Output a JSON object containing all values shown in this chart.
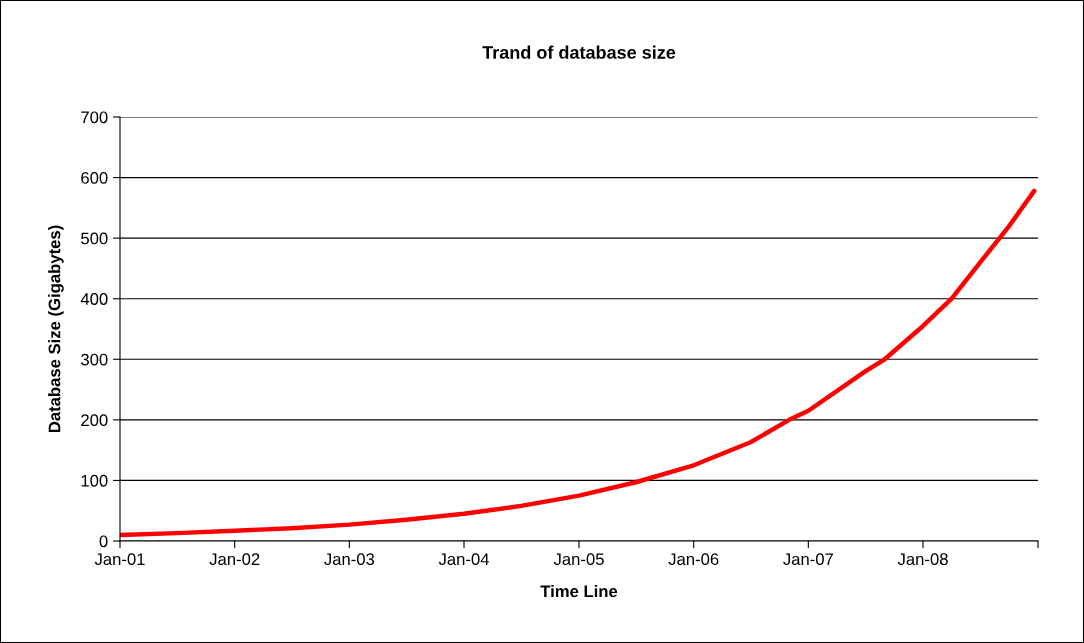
{
  "chart_data": {
    "type": "line",
    "title": "Trand of database size",
    "xlabel": "Time Line",
    "ylabel": "Database Size (Gigabytes)",
    "x": [
      "2001-01",
      "2001-07",
      "2002-01",
      "2002-07",
      "2003-01",
      "2003-07",
      "2004-01",
      "2004-07",
      "2005-01",
      "2005-07",
      "2006-01",
      "2006-07",
      "2006-11",
      "2007-01",
      "2007-07",
      "2007-09",
      "2008-01",
      "2008-04",
      "2008-07",
      "2008-10",
      "2008-12-20"
    ],
    "series": [
      {
        "color": "#ff0000",
        "values": [
          10,
          13,
          17,
          21,
          27,
          35,
          45,
          58,
          75,
          97,
          125,
          163,
          200,
          215,
          280,
          300,
          355,
          400,
          460,
          520,
          578
        ]
      }
    ],
    "xlim": [
      "2001-01",
      "2009-01"
    ],
    "xticks": [
      {
        "value": "2001-01",
        "label": "Jan-01"
      },
      {
        "value": "2002-01",
        "label": "Jan-02"
      },
      {
        "value": "2003-01",
        "label": "Jan-03"
      },
      {
        "value": "2004-01",
        "label": "Jan-04"
      },
      {
        "value": "2005-01",
        "label": "Jan-05"
      },
      {
        "value": "2006-01",
        "label": "Jan-06"
      },
      {
        "value": "2007-01",
        "label": "Jan-07"
      },
      {
        "value": "2008-01",
        "label": "Jan-08"
      },
      {
        "value": "2009-01",
        "label": null
      }
    ],
    "ylim": [
      0,
      700
    ],
    "yticks": [
      0,
      100,
      200,
      300,
      400,
      500,
      600,
      700
    ],
    "grid": "y",
    "legend": false,
    "marker": "none",
    "line_style": "solid"
  }
}
